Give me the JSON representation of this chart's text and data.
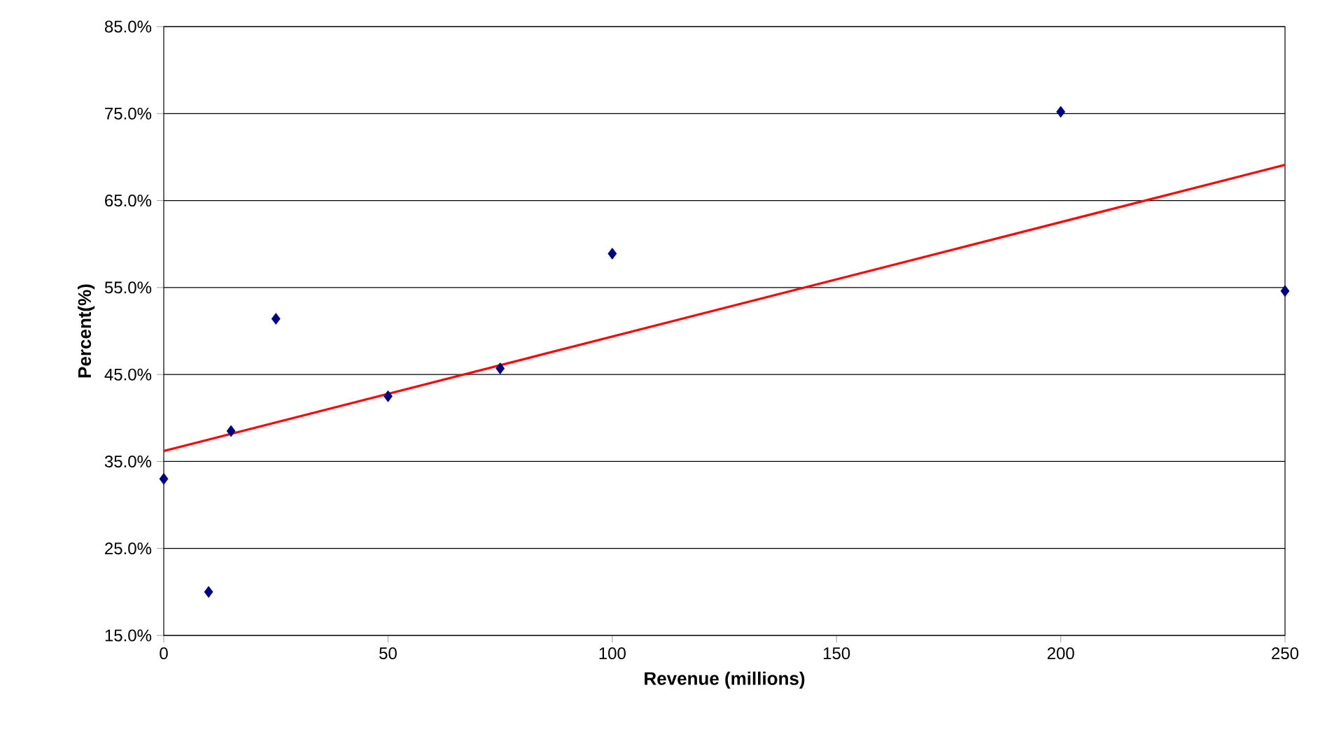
{
  "chart_data": {
    "type": "scatter",
    "xlabel": "Revenue (millions)",
    "ylabel": "Percent(%)",
    "xlim": [
      0,
      250
    ],
    "xticks": [
      0,
      50,
      100,
      150,
      200,
      250
    ],
    "ylim": [
      15,
      85
    ],
    "yticks": [
      {
        "value": 15,
        "label": "15.0%"
      },
      {
        "value": 25,
        "label": "25.0%"
      },
      {
        "value": 35,
        "label": "35.0%"
      },
      {
        "value": 45,
        "label": "45.0%"
      },
      {
        "value": 55,
        "label": "55.0%"
      },
      {
        "value": 65,
        "label": "65.0%"
      },
      {
        "value": 75,
        "label": "75.0%"
      },
      {
        "value": 85,
        "label": "85.0%"
      }
    ],
    "grid": "y",
    "marker": "diamond",
    "series": [
      {
        "color": "#000080",
        "x": [
          0,
          10,
          15,
          25,
          50,
          75,
          100,
          200,
          250
        ],
        "values": [
          33.0,
          20.0,
          38.5,
          51.4,
          42.5,
          45.7,
          58.9,
          75.2,
          54.6
        ]
      },
      {
        "type": "line",
        "color": "#ff0000",
        "x": [
          0,
          250
        ],
        "values": [
          36.2,
          69.1
        ],
        "marker": "none"
      }
    ]
  }
}
